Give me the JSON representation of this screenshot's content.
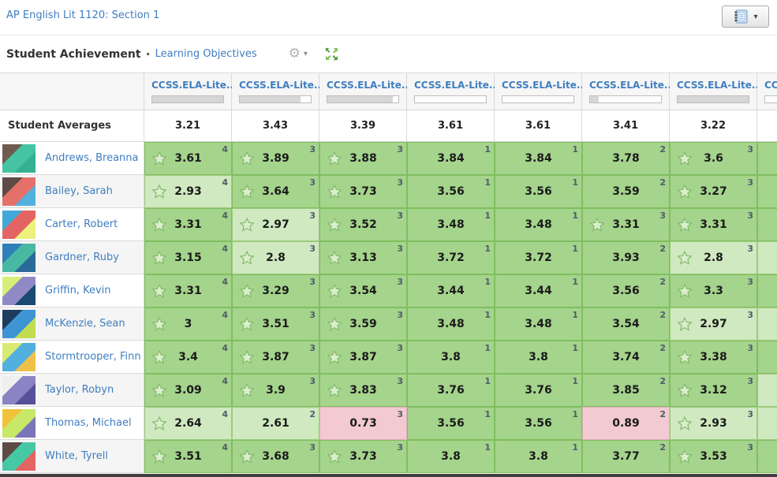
{
  "header": {
    "course_title": "AP English Lit 1120: Section 1"
  },
  "view_button": {
    "icon": "gradebook-icon",
    "caret": "▾"
  },
  "toolbar": {
    "title": "Student Achievement",
    "separator": "·",
    "link": "Learning Objectives",
    "gear_glyph": "⚙",
    "gear_caret": "▾"
  },
  "colors": {
    "link": "#3f7ec0",
    "high_bg": "#a5d48c",
    "mid_bg": "#d0e9c0",
    "low_bg": "#f3cad1",
    "bar_fill": "#d6d6d6",
    "expand_green_dark": "#4f9e3e",
    "expand_green_light": "#7fc456",
    "star_fill": "#d9eecb",
    "star_stroke": "#82b96a"
  },
  "table": {
    "columns": [
      {
        "label": "CCSS.ELA-Lite...",
        "progress_pct": 100
      },
      {
        "label": "CCSS.ELA-Lite...",
        "progress_pct": 85
      },
      {
        "label": "CCSS.ELA-Lite...",
        "progress_pct": 92
      },
      {
        "label": "CCSS.ELA-Lite...",
        "progress_pct": 0
      },
      {
        "label": "CCSS.ELA-Lite...",
        "progress_pct": 0
      },
      {
        "label": "CCSS.ELA-Lite...",
        "progress_pct": 12
      },
      {
        "label": "CCSS.ELA-Lite...",
        "progress_pct": 100
      },
      {
        "label": "CCSS.ELA-Lite...",
        "progress_pct": 0
      }
    ],
    "averages_label": "Student Averages",
    "averages": [
      "3.21",
      "3.43",
      "3.39",
      "3.61",
      "3.61",
      "3.41",
      "3.22",
      ""
    ],
    "students": [
      {
        "name": "Andrews, Breanna",
        "avatar_colors": [
          "#6e5c50",
          "#45c4a4",
          "#35b090"
        ],
        "tail_level": "high",
        "cells": [
          {
            "value": "3.61",
            "count": 4,
            "star": true
          },
          {
            "value": "3.89",
            "count": 3,
            "star": true
          },
          {
            "value": "3.88",
            "count": 3,
            "star": true
          },
          {
            "value": "3.84",
            "count": 1,
            "star": false
          },
          {
            "value": "3.84",
            "count": 1,
            "star": false
          },
          {
            "value": "3.78",
            "count": 2,
            "star": false
          },
          {
            "value": "3.6",
            "count": 3,
            "star": true
          }
        ]
      },
      {
        "name": "Bailey, Sarah",
        "avatar_colors": [
          "#5e4a44",
          "#e4706a",
          "#52b0de"
        ],
        "tail_level": "high",
        "cells": [
          {
            "value": "2.93",
            "count": 4,
            "star": true
          },
          {
            "value": "3.64",
            "count": 3,
            "star": true
          },
          {
            "value": "3.73",
            "count": 3,
            "star": true
          },
          {
            "value": "3.56",
            "count": 1,
            "star": false
          },
          {
            "value": "3.56",
            "count": 1,
            "star": false
          },
          {
            "value": "3.59",
            "count": 2,
            "star": false
          },
          {
            "value": "3.27",
            "count": 3,
            "star": true
          }
        ]
      },
      {
        "name": "Carter, Robert",
        "avatar_colors": [
          "#42a8da",
          "#e46464",
          "#eef07e"
        ],
        "tail_level": "high",
        "cells": [
          {
            "value": "3.31",
            "count": 4,
            "star": true
          },
          {
            "value": "2.97",
            "count": 3,
            "star": true
          },
          {
            "value": "3.52",
            "count": 3,
            "star": true
          },
          {
            "value": "3.48",
            "count": 1,
            "star": false
          },
          {
            "value": "3.48",
            "count": 1,
            "star": false
          },
          {
            "value": "3.31",
            "count": 3,
            "star": true
          },
          {
            "value": "3.31",
            "count": 3,
            "star": true
          }
        ]
      },
      {
        "name": "Gardner, Ruby",
        "avatar_colors": [
          "#2f80b8",
          "#49b8a2",
          "#2a6a9a"
        ],
        "tail_level": "mid",
        "cells": [
          {
            "value": "3.15",
            "count": 4,
            "star": true
          },
          {
            "value": "2.8",
            "count": 3,
            "star": true
          },
          {
            "value": "3.13",
            "count": 3,
            "star": true
          },
          {
            "value": "3.72",
            "count": 1,
            "star": false
          },
          {
            "value": "3.72",
            "count": 1,
            "star": false
          },
          {
            "value": "3.93",
            "count": 2,
            "star": false
          },
          {
            "value": "2.8",
            "count": 3,
            "star": true
          }
        ]
      },
      {
        "name": "Griffin, Kevin",
        "avatar_colors": [
          "#d6ee7a",
          "#9089c6",
          "#1a4a70"
        ],
        "tail_level": "high",
        "cells": [
          {
            "value": "3.31",
            "count": 4,
            "star": true
          },
          {
            "value": "3.29",
            "count": 3,
            "star": true
          },
          {
            "value": "3.54",
            "count": 3,
            "star": true
          },
          {
            "value": "3.44",
            "count": 1,
            "star": false
          },
          {
            "value": "3.44",
            "count": 1,
            "star": false
          },
          {
            "value": "3.56",
            "count": 2,
            "star": false
          },
          {
            "value": "3.3",
            "count": 3,
            "star": true
          }
        ]
      },
      {
        "name": "McKenzie, Sean",
        "avatar_colors": [
          "#1e3c5e",
          "#3f94d4",
          "#c2dc52"
        ],
        "tail_level": "mid",
        "cells": [
          {
            "value": "3",
            "count": 4,
            "star": true
          },
          {
            "value": "3.51",
            "count": 3,
            "star": true
          },
          {
            "value": "3.59",
            "count": 3,
            "star": true
          },
          {
            "value": "3.48",
            "count": 1,
            "star": false
          },
          {
            "value": "3.48",
            "count": 1,
            "star": false
          },
          {
            "value": "3.54",
            "count": 2,
            "star": false
          },
          {
            "value": "2.97",
            "count": 3,
            "star": true
          }
        ]
      },
      {
        "name": "Stormtrooper, Finn",
        "avatar_colors": [
          "#d8ea74",
          "#52b0de",
          "#eec24a"
        ],
        "tail_level": "high",
        "cells": [
          {
            "value": "3.4",
            "count": 4,
            "star": true
          },
          {
            "value": "3.87",
            "count": 3,
            "star": true
          },
          {
            "value": "3.87",
            "count": 3,
            "star": true
          },
          {
            "value": "3.8",
            "count": 1,
            "star": false
          },
          {
            "value": "3.8",
            "count": 1,
            "star": false
          },
          {
            "value": "3.74",
            "count": 2,
            "star": false
          },
          {
            "value": "3.38",
            "count": 3,
            "star": true
          }
        ]
      },
      {
        "name": "Taylor, Robyn",
        "avatar_colors": [
          "#efefef",
          "#8a84c4",
          "#57509a"
        ],
        "tail_level": "mid",
        "cells": [
          {
            "value": "3.09",
            "count": 4,
            "star": true
          },
          {
            "value": "3.9",
            "count": 3,
            "star": true
          },
          {
            "value": "3.83",
            "count": 3,
            "star": true
          },
          {
            "value": "3.76",
            "count": 1,
            "star": false
          },
          {
            "value": "3.76",
            "count": 1,
            "star": false
          },
          {
            "value": "3.85",
            "count": 2,
            "star": false
          },
          {
            "value": "3.12",
            "count": 3,
            "star": true
          }
        ]
      },
      {
        "name": "Thomas, Michael",
        "avatar_colors": [
          "#f2c23a",
          "#c8e868",
          "#7a74ba"
        ],
        "tail_level": "mid",
        "cells": [
          {
            "value": "2.64",
            "count": 4,
            "star": true
          },
          {
            "value": "2.61",
            "count": 2,
            "star": false
          },
          {
            "value": "0.73",
            "count": 3,
            "star": false
          },
          {
            "value": "3.56",
            "count": 1,
            "star": false
          },
          {
            "value": "3.56",
            "count": 1,
            "star": false
          },
          {
            "value": "0.89",
            "count": 2,
            "star": false
          },
          {
            "value": "2.93",
            "count": 3,
            "star": true
          }
        ]
      },
      {
        "name": "White, Tyrell",
        "avatar_colors": [
          "#5e4a44",
          "#47c8a4",
          "#e46464"
        ],
        "tail_level": "high",
        "cells": [
          {
            "value": "3.51",
            "count": 4,
            "star": true
          },
          {
            "value": "3.68",
            "count": 3,
            "star": true
          },
          {
            "value": "3.73",
            "count": 3,
            "star": true
          },
          {
            "value": "3.8",
            "count": 1,
            "star": false
          },
          {
            "value": "3.8",
            "count": 1,
            "star": false
          },
          {
            "value": "3.77",
            "count": 2,
            "star": false
          },
          {
            "value": "3.53",
            "count": 3,
            "star": true
          }
        ]
      }
    ]
  }
}
